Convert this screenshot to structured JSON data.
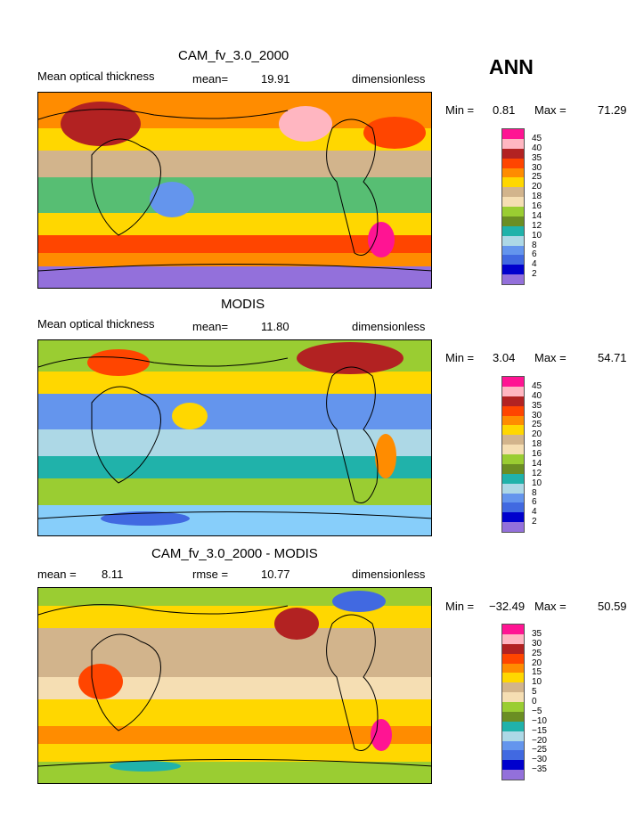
{
  "season": "ANN",
  "units": "dimensionless",
  "panels": [
    {
      "title": "CAM_fv_3.0_2000",
      "left_label": "Mean optical thickness",
      "stat_label": "mean=",
      "stat_value": "19.91",
      "min_label": "Min =",
      "min_value": "0.81",
      "max_label": "Max =",
      "max_value": "71.29",
      "ticks": [
        "45",
        "40",
        "35",
        "30",
        "25",
        "20",
        "18",
        "16",
        "14",
        "12",
        "10",
        "8",
        "6",
        "4",
        "2"
      ],
      "colors": [
        "#ff1493",
        "#ffb6c1",
        "#b22222",
        "#ff4500",
        "#ff8c00",
        "#ffd700",
        "#d2b48c",
        "#f5deb3",
        "#9acd32",
        "#6b8e23",
        "#20b2aa",
        "#add8e6",
        "#6495ed",
        "#4169e1",
        "#0000cd",
        "#9370db"
      ],
      "background": "#9acd32"
    },
    {
      "title": "MODIS",
      "left_label": "Mean optical thickness",
      "stat_label": "mean=",
      "stat_value": "11.80",
      "min_label": "Min =",
      "min_value": "3.04",
      "max_label": "Max =",
      "max_value": "54.71",
      "ticks": [
        "45",
        "40",
        "35",
        "30",
        "25",
        "20",
        "18",
        "16",
        "14",
        "12",
        "10",
        "8",
        "6",
        "4",
        "2"
      ],
      "colors": [
        "#ff1493",
        "#ffb6c1",
        "#b22222",
        "#ff4500",
        "#ff8c00",
        "#ffd700",
        "#d2b48c",
        "#f5deb3",
        "#9acd32",
        "#6b8e23",
        "#20b2aa",
        "#add8e6",
        "#6495ed",
        "#4169e1",
        "#0000cd",
        "#9370db"
      ],
      "background": "#87cefa"
    },
    {
      "title": "CAM_fv_3.0_2000 - MODIS",
      "left_label": "mean =",
      "left_value": "8.11",
      "stat_label": "rmse =",
      "stat_value": "10.77",
      "min_label": "Min =",
      "min_value": "−32.49",
      "max_label": "Max =",
      "max_value": "50.59",
      "ticks": [
        "35",
        "30",
        "25",
        "20",
        "15",
        "10",
        "5",
        "0",
        "−5",
        "−10",
        "−15",
        "−20",
        "−25",
        "−30",
        "−35"
      ],
      "colors": [
        "#ff1493",
        "#ffb6c1",
        "#b22222",
        "#ff4500",
        "#ff8c00",
        "#ffd700",
        "#d2b48c",
        "#f5deb3",
        "#9acd32",
        "#6b8e23",
        "#20b2aa",
        "#add8e6",
        "#6495ed",
        "#4169e1",
        "#0000cd",
        "#9370db"
      ],
      "background": "#d2b48c"
    }
  ]
}
